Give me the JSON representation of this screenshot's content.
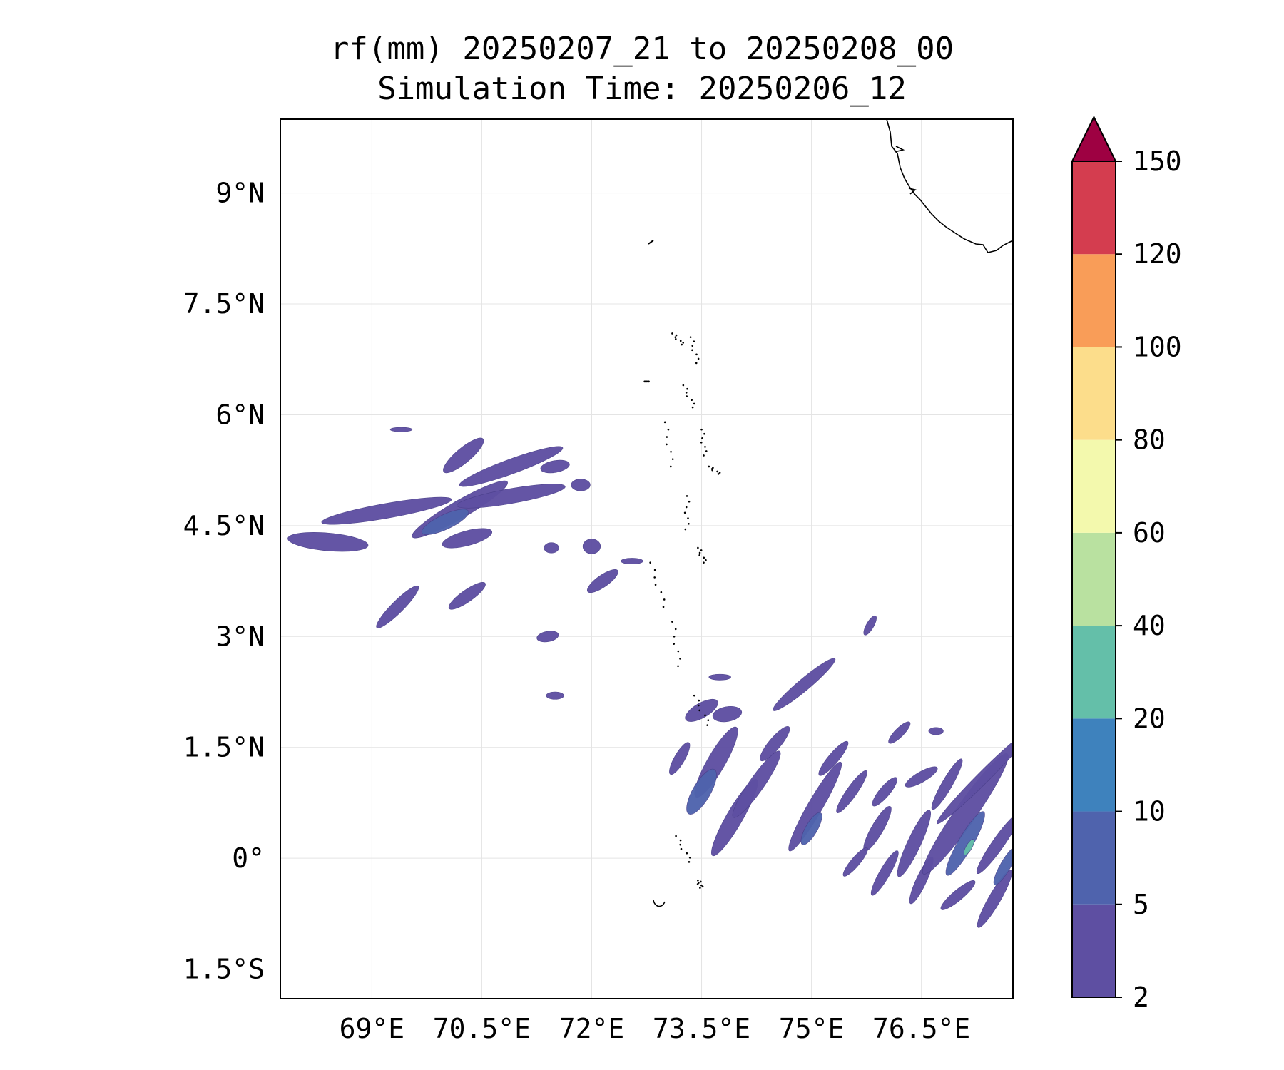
{
  "title": {
    "line1": "rf(mm) 20250207_21 to 20250208_00",
    "line2": "Simulation Time: 20250206_12"
  },
  "chart_data": {
    "type": "heatmap",
    "title": "rf(mm) 20250207_21 to 20250208_00",
    "subtitle": "Simulation Time: 20250206_12",
    "xlabel": "",
    "ylabel": "",
    "xlim": [
      67.75,
      77.75
    ],
    "ylim": [
      -1.9,
      10.0
    ],
    "grid": true,
    "x_ticks": [
      {
        "value": 69.0,
        "label": "69°E"
      },
      {
        "value": 70.5,
        "label": "70.5°E"
      },
      {
        "value": 72.0,
        "label": "72°E"
      },
      {
        "value": 73.5,
        "label": "73.5°E"
      },
      {
        "value": 75.0,
        "label": "75°E"
      },
      {
        "value": 76.5,
        "label": "76.5°E"
      }
    ],
    "y_ticks": [
      {
        "value": 9.0,
        "label": "9°N"
      },
      {
        "value": 7.5,
        "label": "7.5°N"
      },
      {
        "value": 6.0,
        "label": "6°N"
      },
      {
        "value": 4.5,
        "label": "4.5°N"
      },
      {
        "value": 3.0,
        "label": "3°N"
      },
      {
        "value": 1.5,
        "label": "1.5°N"
      },
      {
        "value": 0.0,
        "label": "0°"
      },
      {
        "value": -1.5,
        "label": "1.5°S"
      }
    ],
    "colorbar": {
      "levels": [
        2,
        5,
        10,
        20,
        40,
        60,
        80,
        100,
        120,
        150
      ],
      "labels": [
        "2",
        "5",
        "10",
        "20",
        "40",
        "60",
        "80",
        "100",
        "120",
        "150"
      ],
      "colors": [
        "#5e4fa2",
        "#4f63ad",
        "#3e82bd",
        "#64bfa9",
        "#b9e1a0",
        "#f3f9ad",
        "#fcdd8b",
        "#f99d58",
        "#d43d4f"
      ],
      "extend_color": "#9e0142",
      "extend": "max"
    },
    "rain_features": [
      {
        "lon": 68.4,
        "lat": 4.28,
        "major": 0.55,
        "minor": 0.12,
        "angle": -5,
        "level": 0
      },
      {
        "lon": 69.2,
        "lat": 4.7,
        "major": 0.9,
        "minor": 0.1,
        "angle": 10,
        "level": 0
      },
      {
        "lon": 70.2,
        "lat": 4.72,
        "major": 0.75,
        "minor": 0.12,
        "angle": 30,
        "level": 0
      },
      {
        "lon": 70.0,
        "lat": 4.55,
        "major": 0.35,
        "minor": 0.1,
        "angle": 25,
        "level": 1
      },
      {
        "lon": 70.9,
        "lat": 4.9,
        "major": 0.75,
        "minor": 0.1,
        "angle": 10,
        "level": 0
      },
      {
        "lon": 70.9,
        "lat": 5.3,
        "major": 0.75,
        "minor": 0.1,
        "angle": 20,
        "level": 0
      },
      {
        "lon": 70.25,
        "lat": 5.45,
        "major": 0.35,
        "minor": 0.1,
        "angle": 40,
        "level": 0
      },
      {
        "lon": 71.5,
        "lat": 5.3,
        "major": 0.2,
        "minor": 0.08,
        "angle": 10,
        "level": 0
      },
      {
        "lon": 71.85,
        "lat": 5.05,
        "major": 0.13,
        "minor": 0.08,
        "angle": 0,
        "level": 0
      },
      {
        "lon": 70.3,
        "lat": 4.33,
        "major": 0.35,
        "minor": 0.1,
        "angle": 15,
        "level": 0
      },
      {
        "lon": 71.45,
        "lat": 4.2,
        "major": 0.1,
        "minor": 0.07,
        "angle": 0,
        "level": 0
      },
      {
        "lon": 72.0,
        "lat": 4.22,
        "major": 0.12,
        "minor": 0.1,
        "angle": 0,
        "level": 0
      },
      {
        "lon": 72.55,
        "lat": 4.02,
        "major": 0.15,
        "minor": 0.04,
        "angle": 0,
        "level": 0
      },
      {
        "lon": 72.15,
        "lat": 3.75,
        "major": 0.25,
        "minor": 0.08,
        "angle": 35,
        "level": 0
      },
      {
        "lon": 69.35,
        "lat": 3.4,
        "major": 0.4,
        "minor": 0.08,
        "angle": 45,
        "level": 0
      },
      {
        "lon": 70.3,
        "lat": 3.55,
        "major": 0.3,
        "minor": 0.08,
        "angle": 35,
        "level": 0
      },
      {
        "lon": 71.4,
        "lat": 3.0,
        "major": 0.15,
        "minor": 0.07,
        "angle": 10,
        "level": 0
      },
      {
        "lon": 71.5,
        "lat": 2.2,
        "major": 0.12,
        "minor": 0.05,
        "angle": 0,
        "level": 0
      },
      {
        "lon": 69.4,
        "lat": 5.8,
        "major": 0.15,
        "minor": 0.03,
        "angle": 0,
        "level": 0
      },
      {
        "lon": 74.9,
        "lat": 2.35,
        "major": 0.55,
        "minor": 0.08,
        "angle": 40,
        "level": 0
      },
      {
        "lon": 73.75,
        "lat": 2.45,
        "major": 0.15,
        "minor": 0.04,
        "angle": 0,
        "level": 0
      },
      {
        "lon": 75.8,
        "lat": 3.15,
        "major": 0.15,
        "minor": 0.05,
        "angle": 60,
        "level": 0
      },
      {
        "lon": 73.7,
        "lat": 1.3,
        "major": 0.55,
        "minor": 0.12,
        "angle": 60,
        "level": 0
      },
      {
        "lon": 73.5,
        "lat": 0.9,
        "major": 0.35,
        "minor": 0.12,
        "angle": 60,
        "level": 1
      },
      {
        "lon": 73.95,
        "lat": 0.55,
        "major": 0.6,
        "minor": 0.11,
        "angle": 60,
        "level": 0
      },
      {
        "lon": 74.25,
        "lat": 1.0,
        "major": 0.55,
        "minor": 0.1,
        "angle": 55,
        "level": 0
      },
      {
        "lon": 74.5,
        "lat": 1.55,
        "major": 0.3,
        "minor": 0.08,
        "angle": 50,
        "level": 0
      },
      {
        "lon": 73.2,
        "lat": 1.35,
        "major": 0.25,
        "minor": 0.07,
        "angle": 60,
        "level": 0
      },
      {
        "lon": 73.5,
        "lat": 2.0,
        "major": 0.25,
        "minor": 0.1,
        "angle": 30,
        "level": 0
      },
      {
        "lon": 73.85,
        "lat": 1.95,
        "major": 0.2,
        "minor": 0.1,
        "angle": 10,
        "level": 0
      },
      {
        "lon": 75.05,
        "lat": 0.7,
        "major": 0.7,
        "minor": 0.1,
        "angle": 60,
        "level": 0
      },
      {
        "lon": 75.0,
        "lat": 0.4,
        "major": 0.25,
        "minor": 0.08,
        "angle": 60,
        "level": 1
      },
      {
        "lon": 75.3,
        "lat": 1.35,
        "major": 0.3,
        "minor": 0.07,
        "angle": 50,
        "level": 0
      },
      {
        "lon": 75.55,
        "lat": 0.9,
        "major": 0.35,
        "minor": 0.07,
        "angle": 55,
        "level": 0
      },
      {
        "lon": 75.9,
        "lat": 0.4,
        "major": 0.35,
        "minor": 0.08,
        "angle": 60,
        "level": 0
      },
      {
        "lon": 76.0,
        "lat": 0.9,
        "major": 0.25,
        "minor": 0.07,
        "angle": 50,
        "level": 0
      },
      {
        "lon": 76.4,
        "lat": 0.2,
        "major": 0.5,
        "minor": 0.09,
        "angle": 65,
        "level": 0
      },
      {
        "lon": 76.5,
        "lat": 1.1,
        "major": 0.25,
        "minor": 0.07,
        "angle": 30,
        "level": 0
      },
      {
        "lon": 75.6,
        "lat": -0.05,
        "major": 0.25,
        "minor": 0.06,
        "angle": 50,
        "level": 0
      },
      {
        "lon": 76.0,
        "lat": -0.2,
        "major": 0.35,
        "minor": 0.07,
        "angle": 60,
        "level": 0
      },
      {
        "lon": 76.5,
        "lat": -0.3,
        "major": 0.35,
        "minor": 0.07,
        "angle": 65,
        "level": 0
      },
      {
        "lon": 77.1,
        "lat": 0.6,
        "major": 1.0,
        "minor": 0.14,
        "angle": 55,
        "level": 0
      },
      {
        "lon": 77.1,
        "lat": 0.2,
        "major": 0.5,
        "minor": 0.1,
        "angle": 60,
        "level": 1
      },
      {
        "lon": 77.15,
        "lat": 0.15,
        "major": 0.12,
        "minor": 0.04,
        "angle": 60,
        "level": 3
      },
      {
        "lon": 77.35,
        "lat": 1.1,
        "major": 0.9,
        "minor": 0.08,
        "angle": 45,
        "level": 0
      },
      {
        "lon": 76.85,
        "lat": 1.0,
        "major": 0.4,
        "minor": 0.07,
        "angle": 60,
        "level": 0
      },
      {
        "lon": 77.55,
        "lat": 0.2,
        "major": 0.5,
        "minor": 0.08,
        "angle": 55,
        "level": 0
      },
      {
        "lon": 77.5,
        "lat": -0.55,
        "major": 0.45,
        "minor": 0.08,
        "angle": 60,
        "level": 0
      },
      {
        "lon": 77.0,
        "lat": -0.5,
        "major": 0.3,
        "minor": 0.07,
        "angle": 40,
        "level": 0
      },
      {
        "lon": 77.65,
        "lat": -0.1,
        "major": 0.3,
        "minor": 0.07,
        "angle": 60,
        "level": 1
      },
      {
        "lon": 76.7,
        "lat": 1.72,
        "major": 0.1,
        "minor": 0.05,
        "angle": 0,
        "level": 0
      },
      {
        "lon": 76.2,
        "lat": 1.7,
        "major": 0.2,
        "minor": 0.06,
        "angle": 45,
        "level": 0
      }
    ]
  }
}
